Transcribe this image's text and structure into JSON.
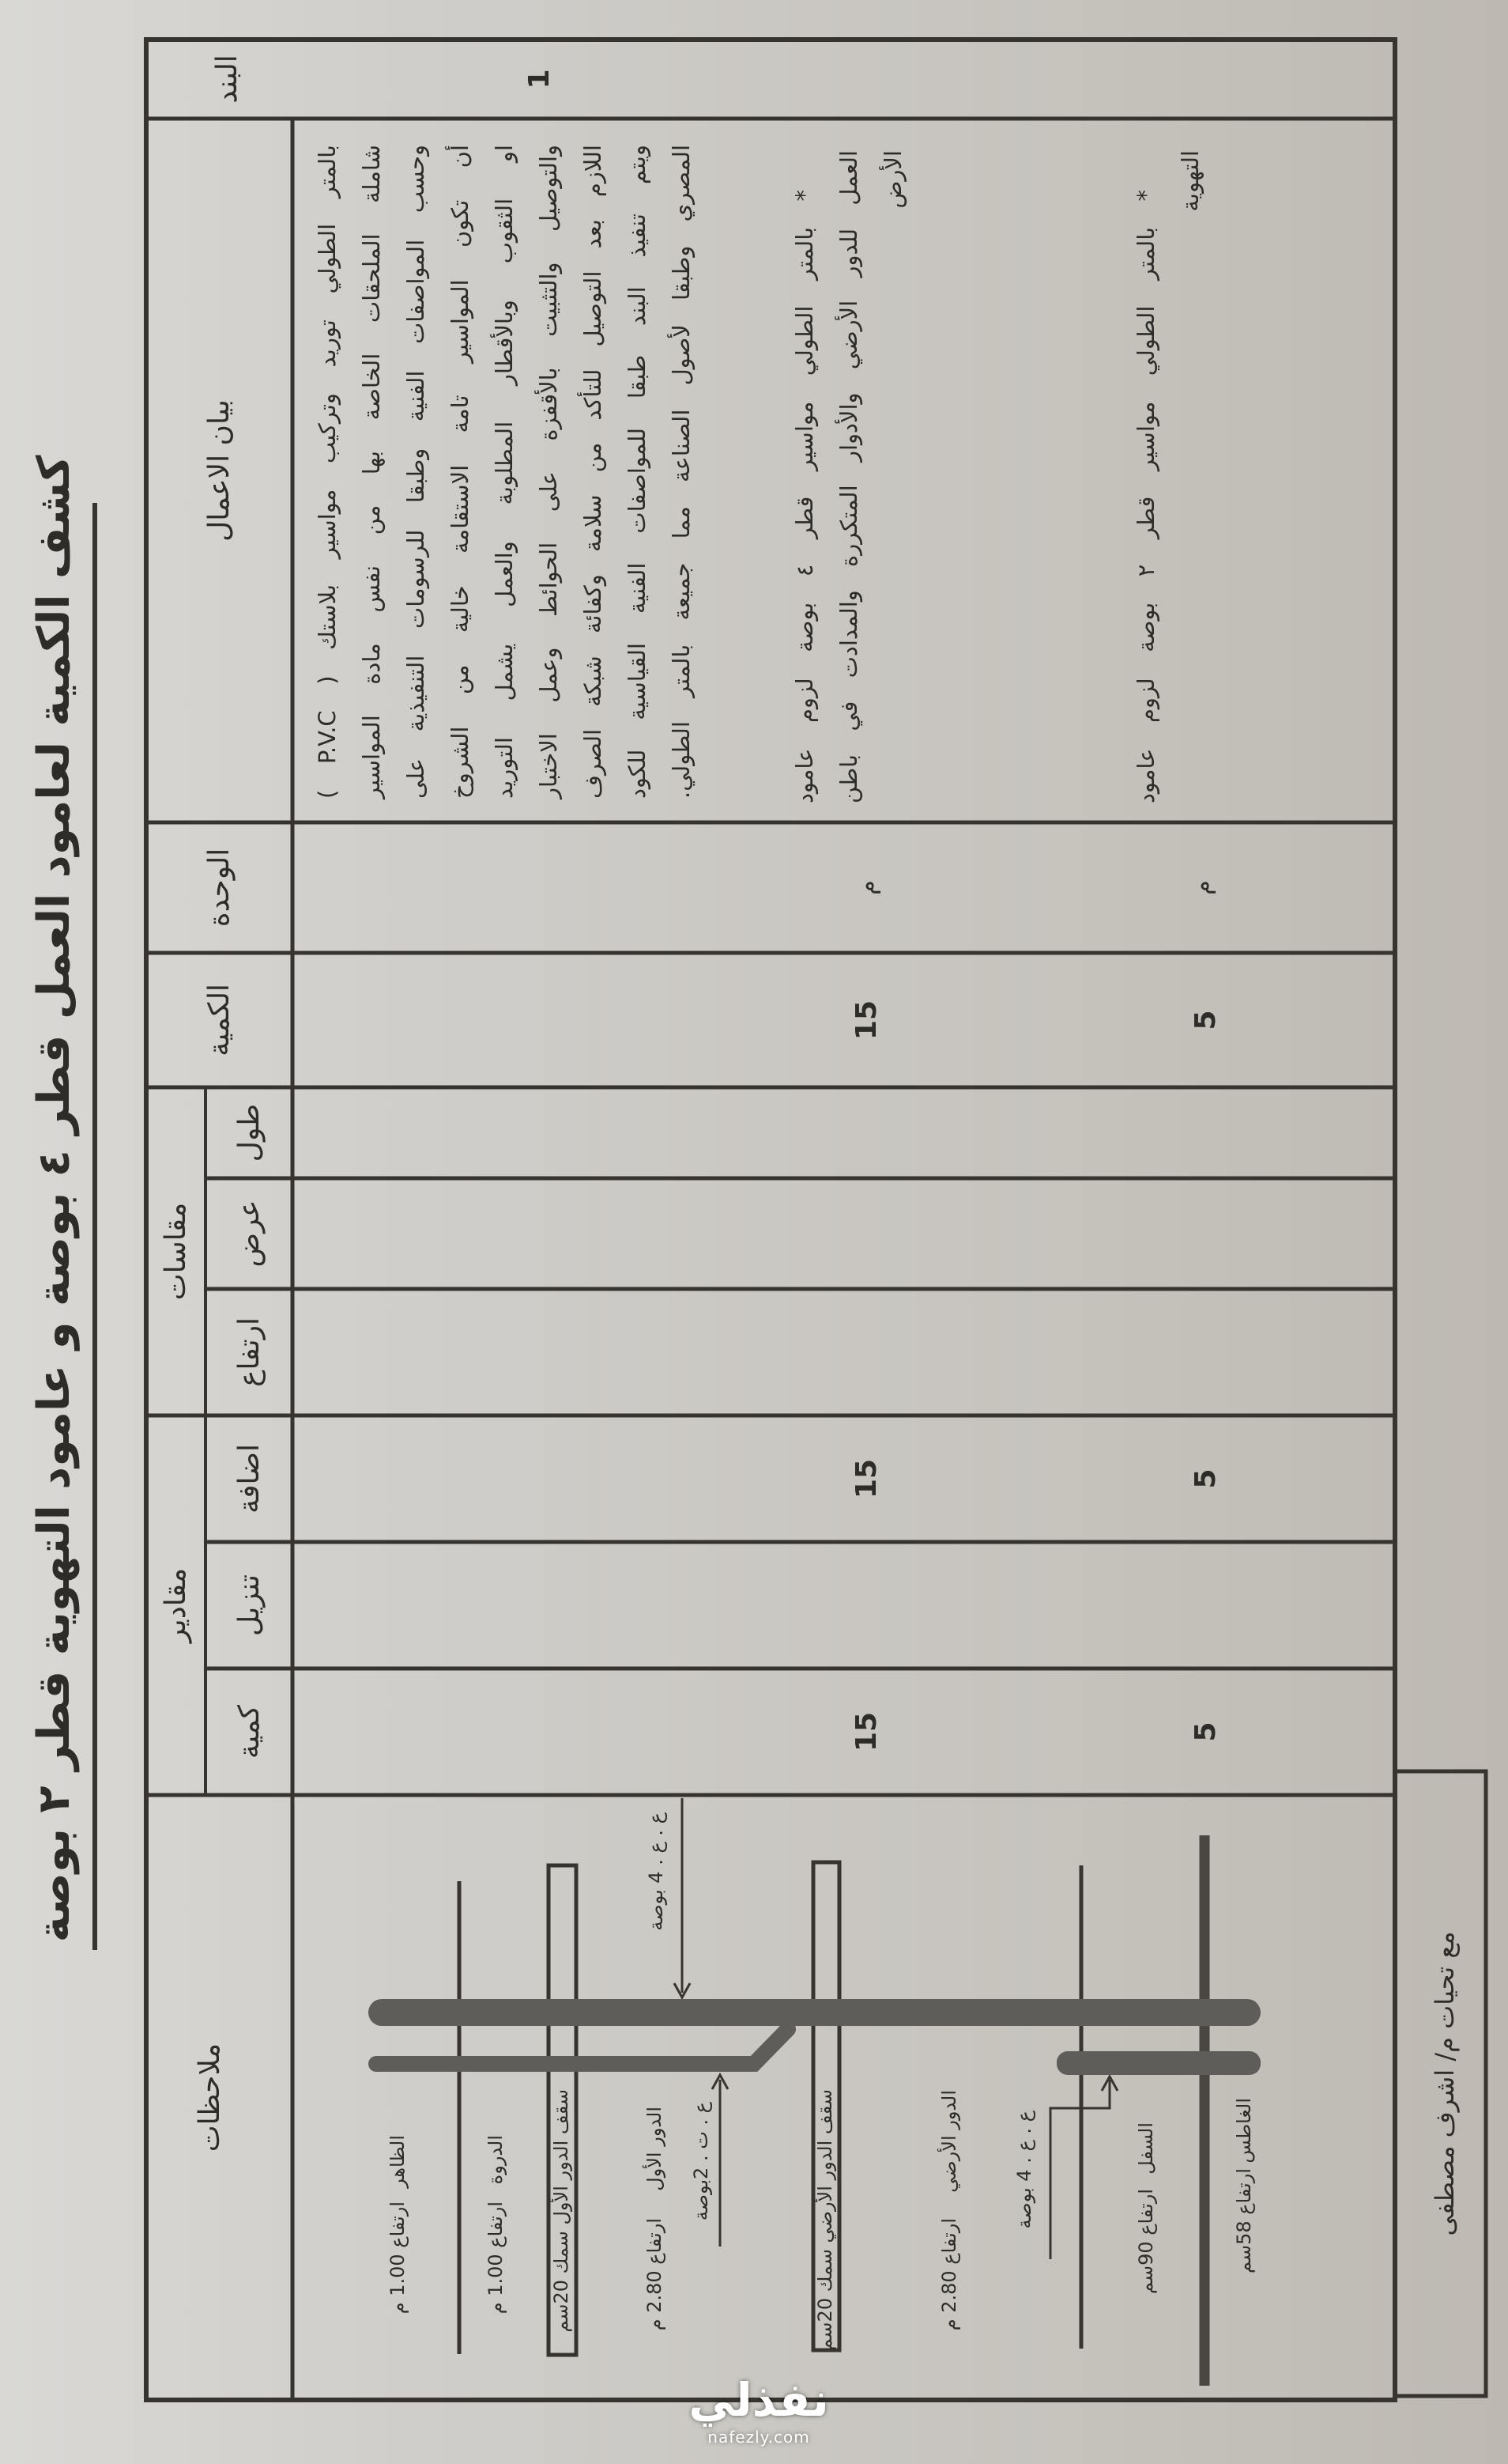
{
  "title": "كشف الكمية لعامود العمل قطر ٤ بوصة و عامود التهوية قطر ٢ بوصة",
  "table": {
    "headers": {
      "item": "البند",
      "description": "بيان الاعمال",
      "unit": "الوحدة",
      "quantity": "الكمية",
      "measurements": "مقاسات",
      "length": "طول",
      "width": "عرض",
      "height": "ارتفاع",
      "amounts": "مقادير",
      "addition": "اضافة",
      "deduction": "تنزيل",
      "amount_qty": "كمية",
      "notes": "ملاحظات"
    },
    "rows": [
      {
        "item": "1",
        "description_lines": [
          "بالمتر الطولي توريد وتركيب مواسير بلاستك ( P.V.C )",
          "شاملة الملحقات الخاصة بها من نفس مادة المواسير",
          "وحسب المواصفات الفنية وطبقا للرسومات التنفيذية على",
          "أن تكون المواسير تامة الاستقامة خالية من الشروخ",
          "او الثقوب وبالأقطار المطلوبة والعمل يشمل التوريد",
          "والتوصيل والتثبيت بالأقفزة على الحوائط وعمل الاختبار",
          "اللازم بعد التوصيل للتأكد من سلامة وكفائة شبكة الصرف",
          "ويتم تنفيذ البند طبقا للمواصفات الفنية القياسية للكود",
          "المصري وطبقا لأصول الصناعة مما جميعة بالمتر الطولي."
        ]
      },
      {
        "description_lines": [
          "* بالمتر الطولي مواسير قطر ٤ بوصة لزوم عامود",
          "العمل للدور الأرضي والأدوار المتكررة والمدادت في باطن",
          "الأرض"
        ],
        "unit": "م",
        "quantity": "15",
        "addition": "15",
        "amount_qty": "15"
      },
      {
        "description_lines": [
          "* بالمتر الطولي مواسير قطر ٢ بوصة لزوم عامود",
          "التهوية"
        ],
        "unit": "م",
        "quantity": "5",
        "addition": "5",
        "amount_qty": "5"
      }
    ]
  },
  "diagram": {
    "pipe_labels": {
      "soil_stack": "ع . ع . 4 بوصة",
      "vent_stack": "ع . ت . 2بوصة",
      "lower_stack": "ع . ع . 4 بوصة"
    },
    "levels": [
      {
        "name": "الظاهر",
        "value": "ارتفاع 1.00 م"
      },
      {
        "name": "الدروة",
        "value": "ارتفاع 1.00 م"
      },
      {
        "name": "سقف الدور الأول سمك 20سم"
      },
      {
        "name": "الدور الأول",
        "value": "ارتفاع 2.80 م"
      },
      {
        "name": "سقف الدور الأرضي سمك 20سم"
      },
      {
        "name": "الدور الأرضي",
        "value": "ارتفاع 2.80 م"
      },
      {
        "name": "السفل",
        "value": "ارتفاع 90سم"
      },
      {
        "name": "الغاطس",
        "value": "ارتفاع 58سم"
      }
    ]
  },
  "footer": "مع تحيات م/ اشرف مصطفى",
  "watermark": {
    "logo": "نفذلي",
    "site": "nafezly.com"
  },
  "colors": {
    "paper": "#cfcdc9",
    "ink": "#2e2c29",
    "pipe": "#5f5d5a"
  }
}
